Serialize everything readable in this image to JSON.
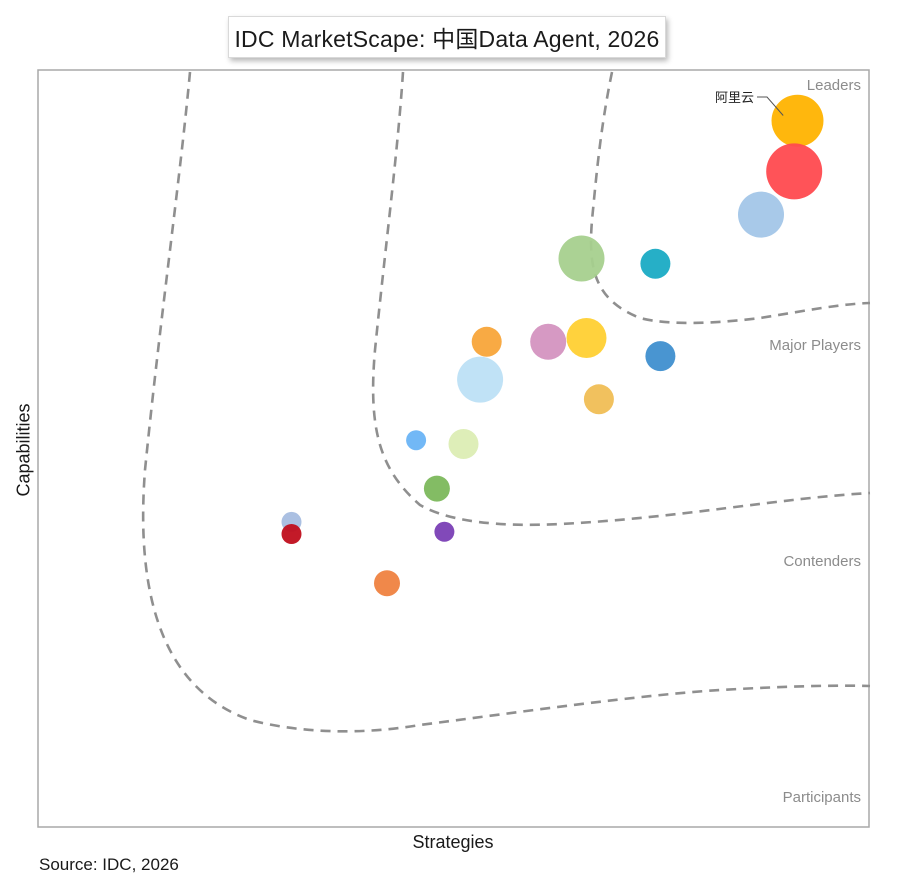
{
  "title": "IDC MarketScape: 中国Data Agent, 2026",
  "source": "Source: IDC, 2026",
  "chart_data": {
    "type": "scatter",
    "title": "IDC MarketScape: 中国Data Agent, 2026",
    "xlabel": "Strategies",
    "ylabel": "Capabilities",
    "xlim": [
      0,
      100
    ],
    "ylim": [
      0,
      100
    ],
    "grid": false,
    "legend": "none",
    "axis_ticks": false,
    "segments": [
      {
        "label": "Leaders",
        "color": "#8c8c8c"
      },
      {
        "label": "Major Players",
        "color": "#8c8c8c"
      },
      {
        "label": "Contenders",
        "color": "#8c8c8c"
      },
      {
        "label": "Participants",
        "color": "#8c8c8c"
      }
    ],
    "annotations": [
      {
        "text": "阿里云",
        "x": 93,
        "y": 93.3
      }
    ],
    "points": [
      {
        "x": 91.4,
        "y": 93.3,
        "size": 26,
        "color": "#ffb300"
      },
      {
        "x": 91.0,
        "y": 86.6,
        "size": 28,
        "color": "#ff4a4f"
      },
      {
        "x": 87.0,
        "y": 80.9,
        "size": 23,
        "color": "#a3c6e8"
      },
      {
        "x": 65.4,
        "y": 75.1,
        "size": 23,
        "color": "#a6d08e"
      },
      {
        "x": 74.3,
        "y": 74.4,
        "size": 15,
        "color": "#1aabc4"
      },
      {
        "x": 54.0,
        "y": 64.1,
        "size": 15,
        "color": "#f8a53a"
      },
      {
        "x": 61.4,
        "y": 64.1,
        "size": 18,
        "color": "#d494c0"
      },
      {
        "x": 66.0,
        "y": 64.6,
        "size": 20,
        "color": "#ffd033"
      },
      {
        "x": 74.9,
        "y": 62.2,
        "size": 15,
        "color": "#3f8fcf"
      },
      {
        "x": 53.2,
        "y": 59.1,
        "size": 23,
        "color": "#bde0f5"
      },
      {
        "x": 67.5,
        "y": 56.5,
        "size": 15,
        "color": "#f0be55"
      },
      {
        "x": 45.5,
        "y": 51.1,
        "size": 10,
        "color": "#6ab4f5"
      },
      {
        "x": 51.2,
        "y": 50.6,
        "size": 15,
        "color": "#dcedb4"
      },
      {
        "x": 48.0,
        "y": 44.7,
        "size": 13,
        "color": "#7cb85c"
      },
      {
        "x": 30.5,
        "y": 40.3,
        "size": 10,
        "color": "#a7bde0"
      },
      {
        "x": 30.5,
        "y": 38.7,
        "size": 10,
        "color": "#c00e1c"
      },
      {
        "x": 48.9,
        "y": 39.0,
        "size": 10,
        "color": "#7a3fb5"
      },
      {
        "x": 42.0,
        "y": 32.2,
        "size": 13,
        "color": "#ef8240"
      }
    ]
  }
}
